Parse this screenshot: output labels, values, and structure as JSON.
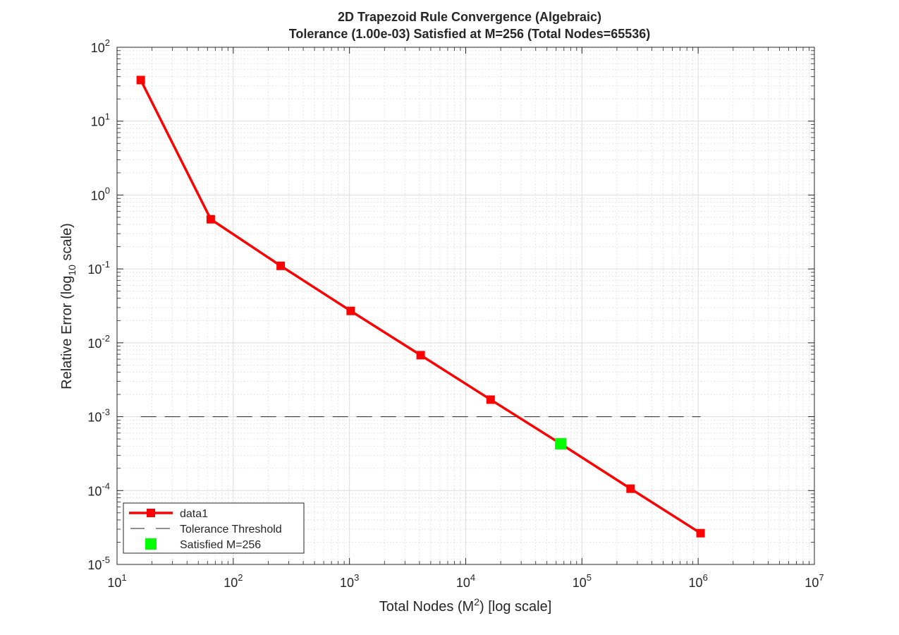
{
  "chart_data": {
    "type": "line",
    "title": "2D Trapezoid Rule Convergence (Algebraic)",
    "subtitle": "Tolerance (1.00e-03) Satisfied at M=256 (Total Nodes=65536)",
    "xlabel": {
      "pre": "Total  Nodes  (M",
      "sup": "2",
      "post": ")  [log  scale]"
    },
    "ylabel": {
      "pre": "Relative  Error  (log",
      "sub": "10",
      "post": "  scale)"
    },
    "x_scale": "log",
    "y_scale": "log",
    "xlim": [
      10,
      10000000
    ],
    "ylim": [
      1e-05,
      100
    ],
    "x_ticks": [
      {
        "base": "10",
        "exp": "1",
        "value": 10
      },
      {
        "base": "10",
        "exp": "2",
        "value": 100
      },
      {
        "base": "10",
        "exp": "3",
        "value": 1000
      },
      {
        "base": "10",
        "exp": "4",
        "value": 10000
      },
      {
        "base": "10",
        "exp": "5",
        "value": 100000
      },
      {
        "base": "10",
        "exp": "6",
        "value": 1000000
      },
      {
        "base": "10",
        "exp": "7",
        "value": 10000000
      }
    ],
    "y_ticks": [
      {
        "base": "10",
        "exp": "-5",
        "value": 1e-05
      },
      {
        "base": "10",
        "exp": "-4",
        "value": 0.0001
      },
      {
        "base": "10",
        "exp": "-3",
        "value": 0.001
      },
      {
        "base": "10",
        "exp": "-2",
        "value": 0.01
      },
      {
        "base": "10",
        "exp": "-1",
        "value": 0.1
      },
      {
        "base": "10",
        "exp": "0",
        "value": 1
      },
      {
        "base": "10",
        "exp": "1",
        "value": 10
      },
      {
        "base": "10",
        "exp": "2",
        "value": 100
      }
    ],
    "grid": true,
    "minor_grid": true,
    "legend_position": "bottom-left",
    "series": [
      {
        "name": "data1",
        "style": "line-square-marker",
        "color": "#ff0000",
        "x": [
          16,
          64,
          256,
          1024,
          4096,
          16384,
          65536,
          262144,
          1048576
        ],
        "y": [
          36,
          0.47,
          0.11,
          0.027,
          0.0068,
          0.0017,
          0.00043,
          0.000106,
          2.65e-05
        ]
      },
      {
        "name": "Tolerance Threshold",
        "style": "dashed",
        "color": "#262626",
        "x": [
          16,
          1048576
        ],
        "y": [
          0.001,
          0.001
        ]
      },
      {
        "name": "Satisfied M=256",
        "style": "square-marker",
        "color": "#00ff00",
        "x": [
          65536
        ],
        "y": [
          0.00043
        ]
      }
    ]
  }
}
